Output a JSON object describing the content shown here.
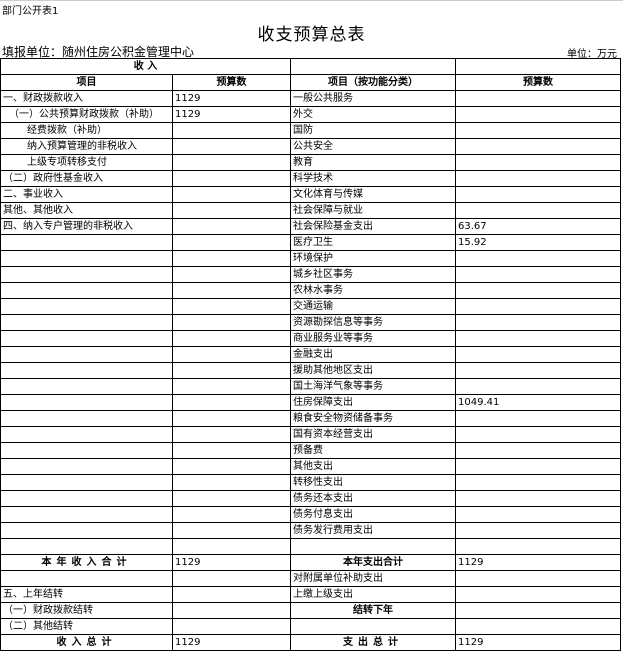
{
  "header": {
    "tag": "部门公开表1",
    "title": "收支预算总表",
    "unit_left": "填报单位：随州住房公积金管理中心",
    "unit_right": "单位：万元"
  },
  "table": {
    "section": "收 入",
    "columns": [
      "项目",
      "预算数",
      "项目（按功能分类）",
      "预算数"
    ],
    "rows": [
      [
        "一、财政拨款收入",
        1129,
        "一般公共服务",
        null
      ],
      [
        "（一）公共预算财政拨款（补助）",
        1129,
        "外交",
        null
      ],
      [
        "经费拨款（补助）",
        null,
        "国防",
        null
      ],
      [
        "纳入预算管理的非税收入",
        null,
        "公共安全",
        null
      ],
      [
        "上级专项转移支付",
        null,
        "教育",
        null
      ],
      [
        "（二）政府性基金收入",
        null,
        "科学技术",
        null
      ],
      [
        "二、事业收入",
        null,
        "文化体育与传媒",
        null
      ],
      [
        "其他、其他收入",
        null,
        "社会保障与就业",
        null
      ],
      [
        "四、纳入专户管理的非税收入",
        null,
        "社会保险基金支出",
        63.67
      ],
      [
        null,
        null,
        "医疗卫生",
        15.92
      ],
      [
        null,
        null,
        "环境保护",
        null
      ],
      [
        null,
        null,
        "城乡社区事务",
        null
      ],
      [
        null,
        null,
        "农林水事务",
        null
      ],
      [
        null,
        null,
        "交通运输",
        null
      ],
      [
        null,
        null,
        "资源勘探信息等事务",
        null
      ],
      [
        null,
        null,
        "商业服务业等事务",
        null
      ],
      [
        null,
        null,
        "金融支出",
        null
      ],
      [
        null,
        null,
        "援助其他地区支出",
        null
      ],
      [
        null,
        null,
        "国土海洋气象等事务",
        null
      ],
      [
        null,
        null,
        "住房保障支出",
        1049.41
      ],
      [
        null,
        null,
        "粮食安全物资储备事务",
        null
      ],
      [
        null,
        null,
        "国有资本经营支出",
        null
      ],
      [
        null,
        null,
        "预备费",
        null
      ],
      [
        null,
        null,
        "其他支出",
        null
      ],
      [
        null,
        null,
        "转移性支出",
        null
      ],
      [
        null,
        null,
        "债务还本支出",
        null
      ],
      [
        null,
        null,
        "债务付息支出",
        null
      ],
      [
        null,
        null,
        "债务发行费用支出",
        null
      ],
      [
        null,
        null,
        null,
        null
      ],
      [
        "本年收入合计",
        1129,
        "本年支出合计",
        1129
      ],
      [
        null,
        null,
        "对附属单位补助支出",
        null
      ],
      [
        "五、上年结转",
        null,
        "上缴上级支出",
        null
      ],
      [
        "（一）财政拨款结转",
        null,
        "结转下年",
        null
      ],
      [
        "（二）其他结转",
        null,
        null,
        null
      ],
      [
        "收入总计",
        1129,
        "支出总计",
        1129
      ]
    ]
  }
}
